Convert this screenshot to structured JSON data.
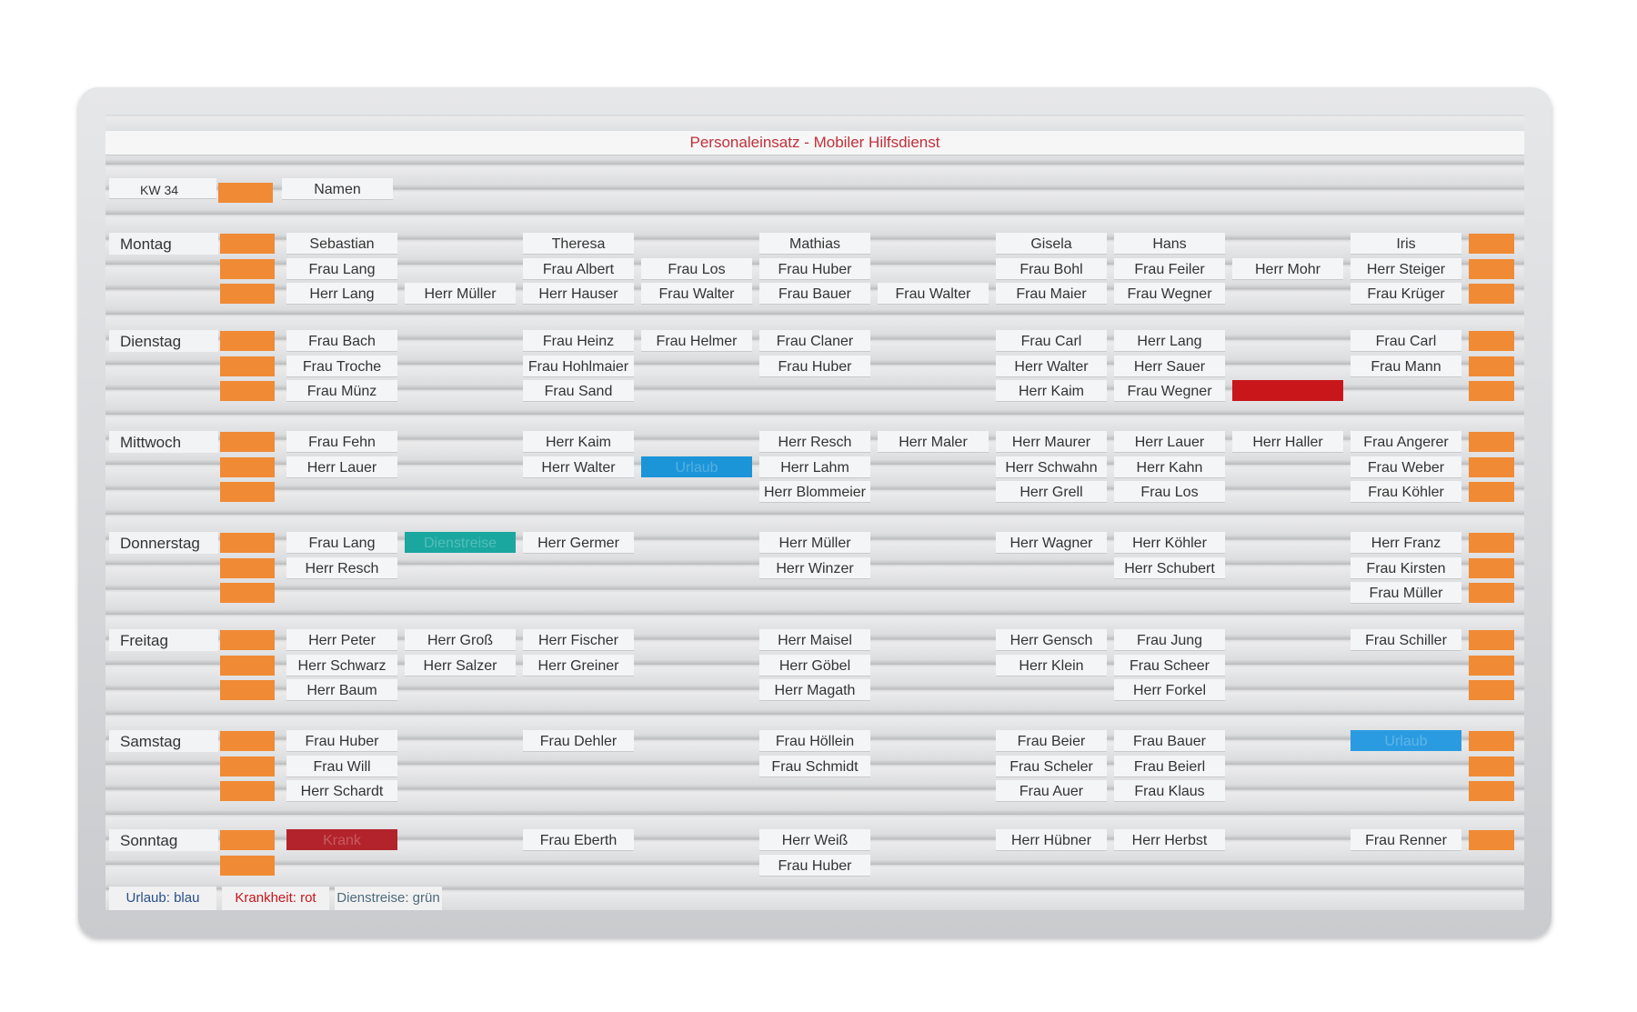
{
  "board": {
    "title": "Personaleinsatz - Mobiler Hilfsdienst",
    "week": "KW 34",
    "names_label": "Namen",
    "days": [
      {
        "name": "Montag",
        "rows": [
          [
            "Sebastian",
            null,
            "Theresa",
            null,
            "Mathias",
            null,
            "Gisela",
            "Hans",
            null,
            "Iris"
          ],
          [
            "Frau Lang",
            null,
            "Frau Albert",
            "Frau Los",
            "Frau Huber",
            null,
            "Frau Bohl",
            "Frau Feiler",
            "Herr Mohr",
            "Herr Steiger"
          ],
          [
            "Herr Lang",
            "Herr Müller",
            "Herr Hauser",
            "Frau Walter",
            "Frau Bauer",
            "Frau Walter",
            "Frau Maier",
            "Frau Wegner",
            null,
            "Frau Krüger"
          ]
        ]
      },
      {
        "name": "Dienstag",
        "rows": [
          [
            "Frau Bach",
            null,
            "Frau Heinz",
            "Frau Helmer",
            "Frau Claner",
            null,
            "Frau Carl",
            "Herr Lang",
            null,
            "Frau Carl"
          ],
          [
            "Frau Troche",
            null,
            "Frau Hohlmaier",
            null,
            "Frau Huber",
            null,
            "Herr Walter",
            "Herr Sauer",
            null,
            "Frau Mann"
          ],
          [
            "Frau Münz",
            null,
            "Frau Sand",
            null,
            null,
            null,
            "Herr Kaim",
            "Frau Wegner",
            {
              "color": "#c8161b"
            },
            null
          ]
        ]
      },
      {
        "name": "Mittwoch",
        "rows": [
          [
            "Frau Fehn",
            null,
            "Herr Kaim",
            null,
            "Herr Resch",
            "Herr Maler",
            "Herr Maurer",
            "Herr Lauer",
            "Herr Haller",
            "Frau Angerer"
          ],
          [
            "Herr Lauer",
            null,
            "Herr Walter",
            {
              "label": "Urlaub",
              "color": "#1b95d8"
            },
            "Herr Lahm",
            null,
            "Herr Schwahn",
            "Herr Kahn",
            null,
            "Frau Weber"
          ],
          [
            null,
            null,
            null,
            null,
            "Herr Blommeier",
            null,
            "Herr Grell",
            "Frau Los",
            null,
            "Frau Köhler"
          ]
        ]
      },
      {
        "name": "Donnerstag",
        "rows": [
          [
            "Frau Lang",
            {
              "label": "Dienstreise",
              "color": "#1aa7a0"
            },
            "Herr Germer",
            null,
            "Herr Müller",
            null,
            "Herr Wagner",
            "Herr Köhler",
            null,
            "Herr Franz"
          ],
          [
            "Herr Resch",
            null,
            null,
            null,
            "Herr Winzer",
            null,
            null,
            "Herr Schubert",
            null,
            "Frau Kirsten"
          ],
          [
            null,
            null,
            null,
            null,
            null,
            null,
            null,
            null,
            null,
            "Frau Müller"
          ]
        ]
      },
      {
        "name": "Freitag",
        "rows": [
          [
            "Herr Peter",
            "Herr Groß",
            "Herr Fischer",
            null,
            "Herr Maisel",
            null,
            "Herr Gensch",
            "Frau Jung",
            null,
            "Frau Schiller"
          ],
          [
            "Herr Schwarz",
            "Herr Salzer",
            "Herr Greiner",
            null,
            "Herr Göbel",
            null,
            "Herr Klein",
            "Frau Scheer",
            null,
            null
          ],
          [
            "Herr Baum",
            null,
            null,
            null,
            "Herr Magath",
            null,
            null,
            "Herr Forkel",
            null,
            null
          ]
        ]
      },
      {
        "name": "Samstag",
        "rows": [
          [
            "Frau Huber",
            null,
            "Frau Dehler",
            null,
            "Frau Höllein",
            null,
            "Frau Beier",
            "Frau Bauer",
            null,
            {
              "label": "Urlaub",
              "color": "#2a9be0"
            }
          ],
          [
            "Frau Will",
            null,
            null,
            null,
            "Frau Schmidt",
            null,
            "Frau Scheler",
            "Frau Beierl",
            null,
            null
          ],
          [
            "Herr Schardt",
            null,
            null,
            null,
            null,
            null,
            "Frau Auer",
            "Frau Klaus",
            null,
            null
          ]
        ]
      },
      {
        "name": "Sonntag",
        "rows": [
          [
            {
              "label": "Krank",
              "color": "#b3232b"
            },
            null,
            "Frau Eberth",
            null,
            "Herr Weiß",
            null,
            "Herr Hübner",
            "Herr Herbst",
            null,
            "Frau Renner"
          ],
          [
            null,
            null,
            null,
            null,
            "Frau Huber",
            null,
            null,
            null,
            null,
            null
          ]
        ]
      }
    ],
    "legend": [
      {
        "label": "Urlaub: blau",
        "color": "#2a4f8a"
      },
      {
        "label": "Krankheit: rot",
        "color": "#c8161b"
      },
      {
        "label": "Dienstreise: grün",
        "color": "#4d6a7a"
      }
    ]
  }
}
